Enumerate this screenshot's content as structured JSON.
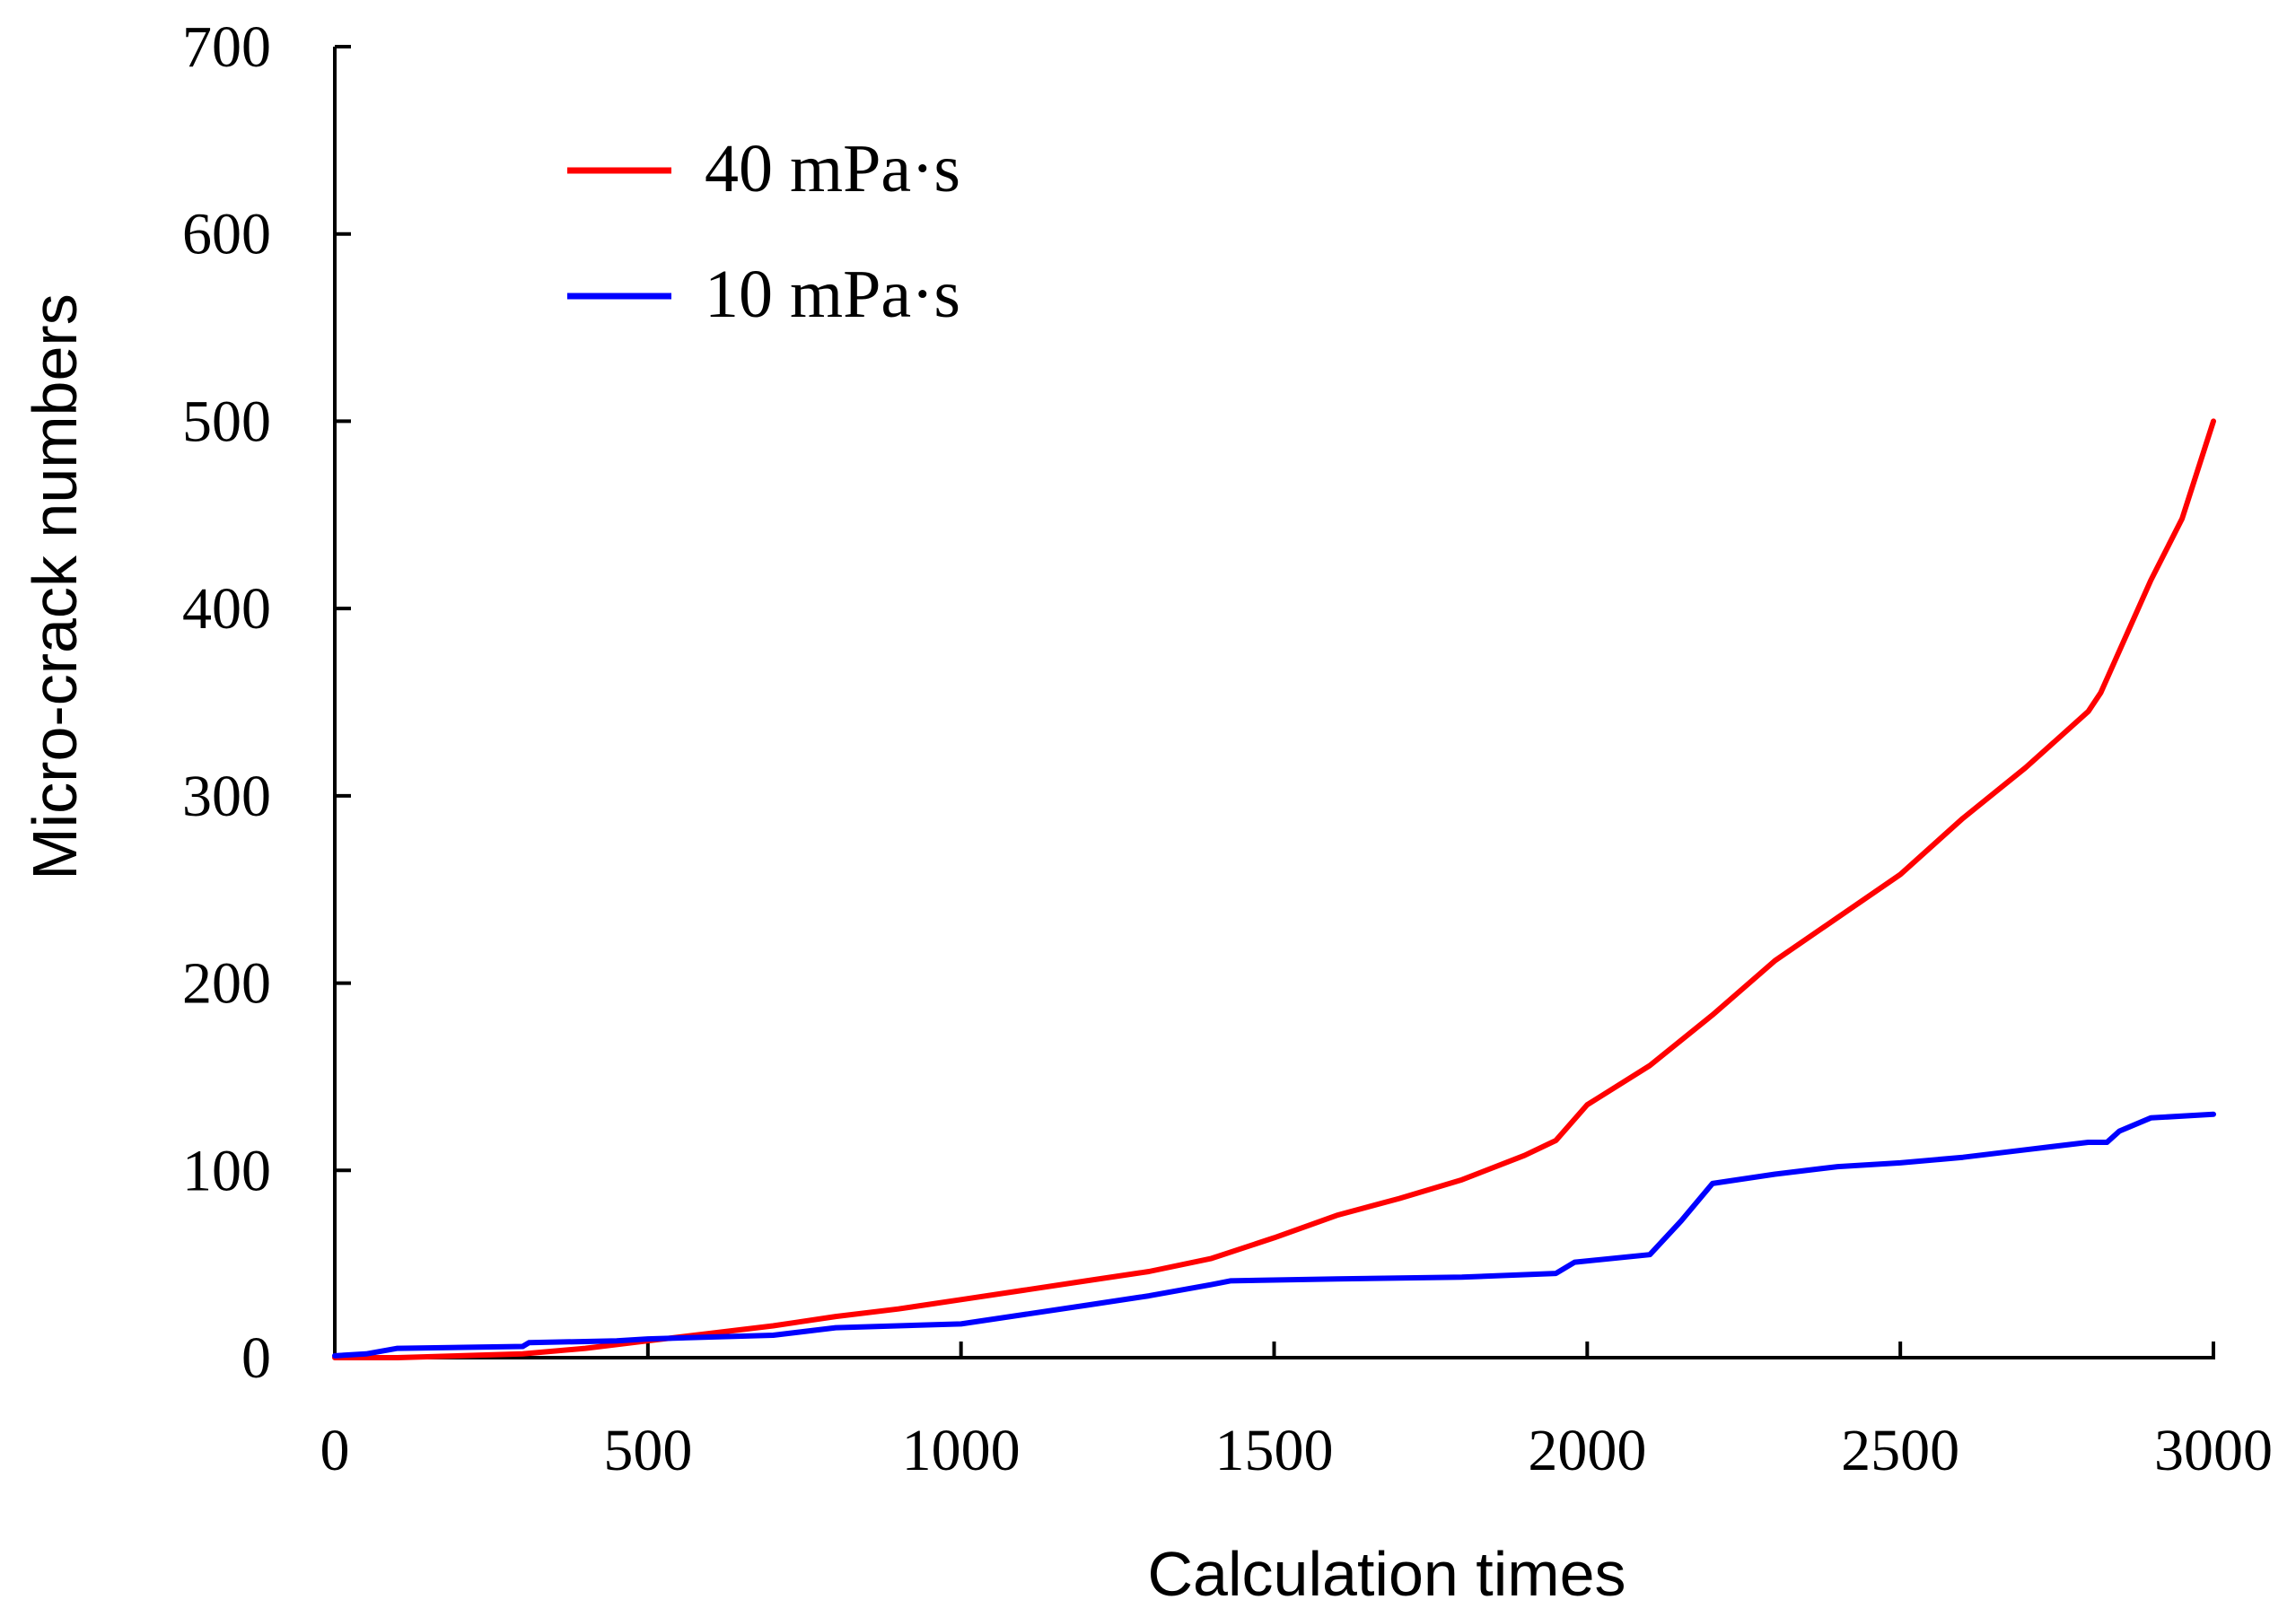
{
  "chart_data": {
    "type": "line",
    "title": "",
    "xlabel": "Calculation times",
    "ylabel": "Micro-crack numbers",
    "xlim": [
      0,
      3000
    ],
    "ylim": [
      0,
      700
    ],
    "xticks": [
      0,
      500,
      1000,
      1500,
      2000,
      2500,
      3000
    ],
    "yticks": [
      0,
      100,
      200,
      300,
      400,
      500,
      600,
      700
    ],
    "grid": false,
    "legend_position": "top-left",
    "series": [
      {
        "name": "40 mPa·s",
        "color": "#ff0000",
        "x": [
          0,
          100,
          200,
          300,
          400,
          500,
          600,
          700,
          800,
          900,
          1000,
          1100,
          1200,
          1300,
          1400,
          1500,
          1600,
          1700,
          1800,
          1900,
          1950,
          2000,
          2100,
          2200,
          2300,
          2400,
          2500,
          2600,
          2700,
          2800,
          2820,
          2900,
          2950,
          3000
        ],
        "y": [
          0,
          0,
          1,
          2,
          5,
          9,
          13,
          17,
          22,
          26,
          31,
          36,
          41,
          46,
          53,
          64,
          76,
          85,
          95,
          108,
          116,
          135,
          156,
          183,
          212,
          235,
          258,
          288,
          315,
          345,
          355,
          415,
          448,
          500
        ]
      },
      {
        "name": "10 mPa·s",
        "color": "#0000ff",
        "x": [
          0,
          50,
          100,
          300,
          310,
          450,
          500,
          700,
          800,
          1000,
          1100,
          1200,
          1300,
          1400,
          1430,
          1600,
          1800,
          1950,
          1980,
          2100,
          2150,
          2200,
          2300,
          2400,
          2500,
          2600,
          2700,
          2800,
          2830,
          2850,
          2900,
          3000
        ],
        "y": [
          1,
          2,
          5,
          6,
          8,
          9,
          10,
          12,
          16,
          18,
          23,
          28,
          33,
          39,
          41,
          42,
          43,
          45,
          51,
          55,
          73,
          93,
          98,
          102,
          104,
          107,
          111,
          115,
          115,
          121,
          128,
          130
        ]
      }
    ]
  }
}
